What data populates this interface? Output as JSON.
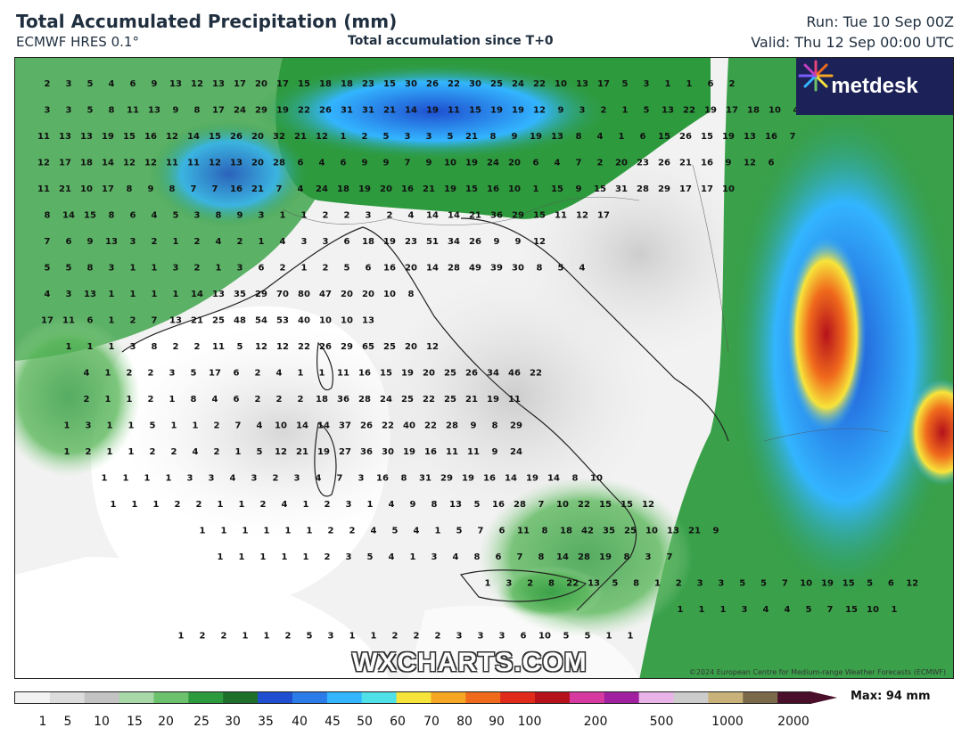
{
  "header": {
    "title": "Total Accumulated Precipitation (mm)",
    "model": "ECMWF HRES 0.1°",
    "subtitle": "Total accumulation since T+0",
    "run": "Run: Tue 10 Sep 00Z",
    "valid": "Valid: Thu 12 Sep 00:00 UTC"
  },
  "brand": {
    "logo_text": "metdesk",
    "watermark": "WXCHARTS.COM",
    "copyright": "©2024 European Centre for Medium-range Weather Forecasts (ECMWF)"
  },
  "legend": {
    "ticks": [
      "1",
      "5",
      "10",
      "15",
      "20",
      "25",
      "30",
      "35",
      "40",
      "45",
      "50",
      "60",
      "70",
      "80",
      "90",
      "100",
      "200",
      "500",
      "1000",
      "2000"
    ],
    "max_label": "Max: 94 mm",
    "colors": [
      "#f2f2f2",
      "#dcdcdc",
      "#c3c3c3",
      "#a8d8a8",
      "#6cc26c",
      "#2e9a3e",
      "#1d6f2a",
      "#1f4fd0",
      "#2b7be8",
      "#33b5ff",
      "#4fe0e8",
      "#f7e43a",
      "#f5a623",
      "#f06a1c",
      "#e02a1a",
      "#b5121b",
      "#d63aa0",
      "#a020a0",
      "#e8b4e8",
      "#cccccc",
      "#c8b27a",
      "#7a6a4a",
      "#4a0f2a"
    ]
  },
  "map": {
    "labels_row_values": [
      [
        "2",
        "3",
        "5",
        "4",
        "6",
        "9",
        "13",
        "12",
        "13",
        "17",
        "20",
        "17",
        "15",
        "18",
        "18",
        "23",
        "15",
        "30",
        "26",
        "22",
        "30",
        "25",
        "24",
        "22",
        "10",
        "13",
        "17",
        "5",
        "3",
        "1",
        "1",
        "6",
        "2"
      ],
      [
        "3",
        "3",
        "5",
        "8",
        "11",
        "13",
        "9",
        "8",
        "17",
        "24",
        "29",
        "19",
        "22",
        "26",
        "31",
        "31",
        "21",
        "14",
        "19",
        "11",
        "15",
        "19",
        "19",
        "12",
        "9",
        "3",
        "2",
        "1",
        "5",
        "13",
        "22",
        "19",
        "17",
        "18",
        "10",
        "4"
      ],
      [
        "11",
        "13",
        "13",
        "19",
        "15",
        "16",
        "12",
        "14",
        "15",
        "26",
        "20",
        "32",
        "21",
        "12",
        "1",
        "2",
        "5",
        "3",
        "3",
        "5",
        "21",
        "8",
        "9",
        "19",
        "13",
        "8",
        "4",
        "1",
        "6",
        "15",
        "26",
        "15",
        "19",
        "13",
        "16",
        "7"
      ],
      [
        "12",
        "17",
        "18",
        "14",
        "12",
        "12",
        "11",
        "11",
        "12",
        "13",
        "20",
        "28",
        "6",
        "4",
        "6",
        "9",
        "9",
        "7",
        "9",
        "10",
        "19",
        "24",
        "20",
        "6",
        "4",
        "7",
        "2",
        "20",
        "23",
        "26",
        "21",
        "16",
        "9",
        "12",
        "6"
      ],
      [
        "11",
        "21",
        "10",
        "17",
        "8",
        "9",
        "8",
        "7",
        "7",
        "16",
        "21",
        "7",
        "4",
        "24",
        "18",
        "19",
        "20",
        "16",
        "21",
        "19",
        "15",
        "16",
        "10",
        "1",
        "15",
        "9",
        "15",
        "31",
        "28",
        "29",
        "17",
        "17",
        "10"
      ],
      [
        "8",
        "14",
        "15",
        "8",
        "6",
        "4",
        "5",
        "3",
        "8",
        "9",
        "3",
        "1",
        "1",
        "2",
        "2",
        "3",
        "2",
        "4",
        "14",
        "14",
        "21",
        "36",
        "29",
        "15",
        "11",
        "12",
        "17"
      ],
      [
        "7",
        "6",
        "9",
        "13",
        "3",
        "2",
        "1",
        "2",
        "4",
        "2",
        "1",
        "4",
        "3",
        "3",
        "6",
        "18",
        "19",
        "23",
        "51",
        "34",
        "26",
        "9",
        "9",
        "12"
      ],
      [
        "5",
        "5",
        "8",
        "3",
        "1",
        "1",
        "3",
        "2",
        "1",
        "3",
        "6",
        "2",
        "1",
        "2",
        "5",
        "6",
        "16",
        "20",
        "14",
        "28",
        "49",
        "39",
        "30",
        "8",
        "5",
        "4"
      ],
      [
        "4",
        "3",
        "13",
        "1",
        "1",
        "1",
        "1",
        "14",
        "13",
        "35",
        "29",
        "70",
        "80",
        "47",
        "20",
        "20",
        "10",
        "8"
      ],
      [
        "17",
        "11",
        "6",
        "1",
        "2",
        "7",
        "13",
        "21",
        "25",
        "48",
        "54",
        "53",
        "40",
        "10",
        "10",
        "13"
      ],
      [
        "1",
        "1",
        "1",
        "3",
        "8",
        "2",
        "2",
        "11",
        "5",
        "12",
        "12",
        "22",
        "26",
        "29",
        "65",
        "25",
        "20",
        "12"
      ],
      [
        "4",
        "1",
        "2",
        "2",
        "3",
        "5",
        "17",
        "6",
        "2",
        "4",
        "1",
        "1",
        "11",
        "16",
        "15",
        "19",
        "20",
        "25",
        "26",
        "34",
        "46",
        "22"
      ],
      [
        "2",
        "1",
        "1",
        "2",
        "1",
        "8",
        "4",
        "6",
        "2",
        "2",
        "2",
        "18",
        "36",
        "28",
        "24",
        "25",
        "22",
        "25",
        "21",
        "19",
        "11"
      ],
      [
        "1",
        "3",
        "1",
        "1",
        "5",
        "1",
        "1",
        "2",
        "7",
        "4",
        "10",
        "14",
        "14",
        "37",
        "26",
        "22",
        "40",
        "22",
        "28",
        "9",
        "8",
        "29"
      ],
      [
        "1",
        "2",
        "1",
        "1",
        "2",
        "2",
        "4",
        "2",
        "1",
        "5",
        "12",
        "21",
        "19",
        "27",
        "36",
        "30",
        "19",
        "16",
        "11",
        "11",
        "9",
        "24"
      ],
      [
        "1",
        "1",
        "1",
        "1",
        "3",
        "3",
        "4",
        "3",
        "2",
        "3",
        "4",
        "7",
        "3",
        "16",
        "8",
        "31",
        "29",
        "19",
        "16",
        "14",
        "19",
        "14",
        "8",
        "10"
      ],
      [
        "1",
        "1",
        "1",
        "2",
        "2",
        "1",
        "1",
        "2",
        "4",
        "1",
        "2",
        "3",
        "1",
        "4",
        "9",
        "8",
        "13",
        "5",
        "16",
        "28",
        "7",
        "10",
        "22",
        "15",
        "15",
        "12"
      ],
      [
        "1",
        "1",
        "1",
        "1",
        "1",
        "1",
        "2",
        "2",
        "4",
        "5",
        "4",
        "1",
        "5",
        "7",
        "6",
        "11",
        "8",
        "18",
        "42",
        "35",
        "25",
        "10",
        "13",
        "21",
        "9"
      ],
      [
        "1",
        "1",
        "1",
        "1",
        "1",
        "2",
        "3",
        "5",
        "4",
        "1",
        "3",
        "4",
        "8",
        "6",
        "7",
        "8",
        "14",
        "28",
        "19",
        "8",
        "3",
        "7"
      ],
      [
        "1",
        "3",
        "2",
        "8",
        "22",
        "13",
        "5",
        "8",
        "1",
        "2",
        "3",
        "3",
        "5",
        "5",
        "7",
        "10",
        "19",
        "15",
        "5",
        "6",
        "12"
      ],
      [
        "1",
        "1",
        "1",
        "3",
        "4",
        "4",
        "5",
        "7",
        "15",
        "10",
        "1"
      ],
      [
        "1",
        "2",
        "2",
        "1",
        "1",
        "2",
        "5",
        "3",
        "1",
        "1",
        "2",
        "2",
        "2",
        "3",
        "3",
        "3",
        "6",
        "10",
        "5",
        "5",
        "1",
        "1"
      ]
    ]
  }
}
